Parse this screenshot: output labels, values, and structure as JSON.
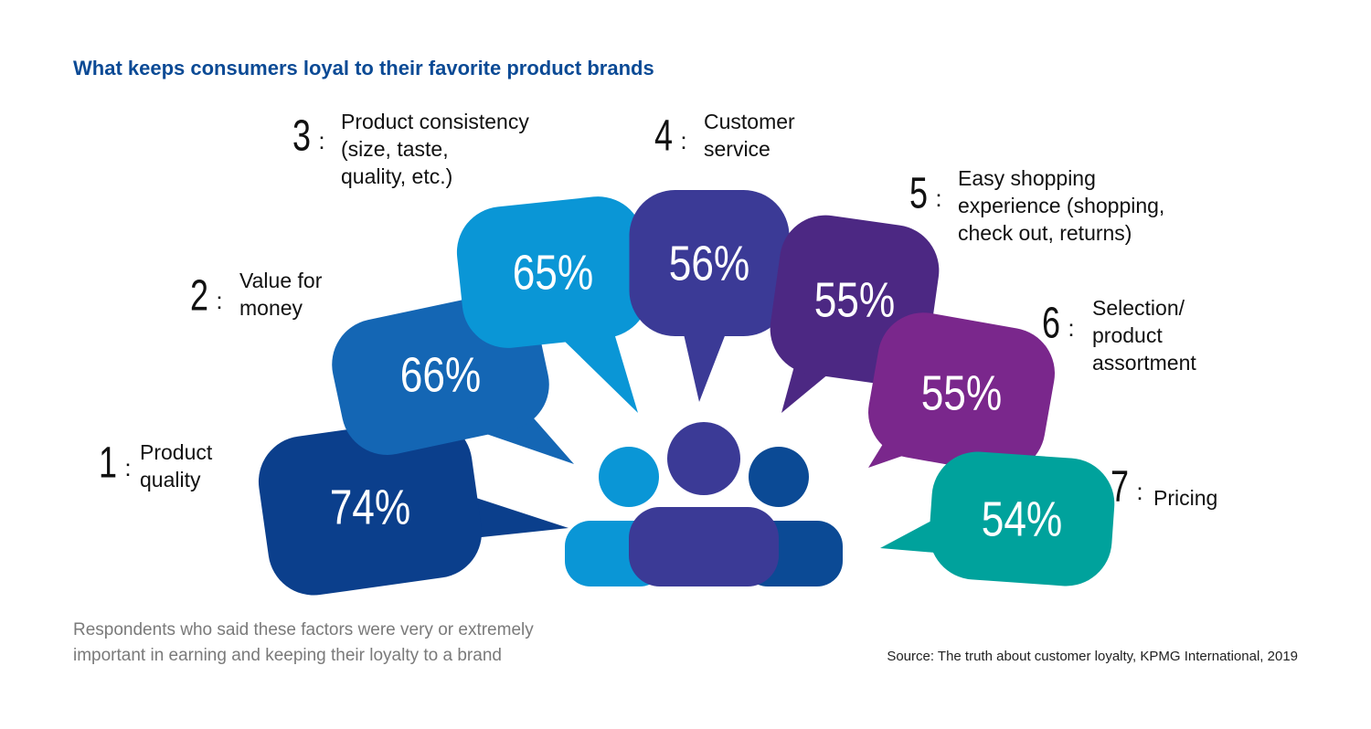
{
  "title": "What keeps consumers loyal to their favorite product brands",
  "items": [
    {
      "rank": "1",
      "separator": ":",
      "label": [
        "Product",
        "quality"
      ],
      "value": "74%"
    },
    {
      "rank": "2",
      "separator": ":",
      "label": [
        "Value for",
        "money"
      ],
      "value": "66%"
    },
    {
      "rank": "3",
      "separator": ":",
      "label": [
        "Product consistency",
        "(size, taste,",
        "quality, etc.)"
      ],
      "value": "65%"
    },
    {
      "rank": "4",
      "separator": ":",
      "label": [
        "Customer",
        "service"
      ],
      "value": "56%"
    },
    {
      "rank": "5",
      "separator": ":",
      "label": [
        "Easy shopping",
        "experience (shopping,",
        "check out, returns)"
      ],
      "value": "55%"
    },
    {
      "rank": "6",
      "separator": ":",
      "label": [
        "Selection/",
        "product",
        "assortment"
      ],
      "value": "55%"
    },
    {
      "rank": "7",
      "separator": ":",
      "label": [
        "Pricing"
      ],
      "value": "54%"
    }
  ],
  "note": [
    "Respondents who said these factors were very or extremely",
    "important in earning and keeping their loyalty to a brand"
  ],
  "source": "Source: The truth about customer loyalty, KPMG International, 2019"
}
